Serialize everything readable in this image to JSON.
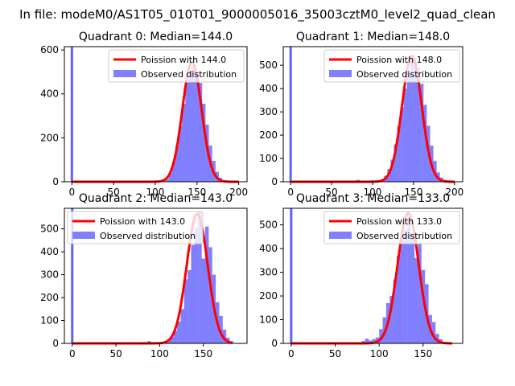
{
  "suptitle": "In file: modeM0/AS1T05_010T01_9000005016_35003cztM0_level2_quad_clean",
  "colors": {
    "hist": "#8080ff",
    "hist_spike": "#5f5fff",
    "fit": "#ff0000",
    "axis": "#000000"
  },
  "chart_data": [
    {
      "type": "bar",
      "title": "Quadrant 0: Median=144.0",
      "xlim": [
        -9,
        210
      ],
      "ylim": [
        0,
        615
      ],
      "xticks": [
        0,
        50,
        100,
        150,
        200
      ],
      "yticks": [
        0,
        200,
        400,
        600
      ],
      "legend": {
        "position": "top-right",
        "fit_label": "Poission with 144.0",
        "hist_label": "Observed distribution"
      },
      "median": 144,
      "amplitude": 545,
      "sigma": 11.5,
      "spike": {
        "x": 0,
        "value": 615
      },
      "hist": [
        [
          108,
          2
        ],
        [
          112,
          12
        ],
        [
          116,
          40
        ],
        [
          120,
          90
        ],
        [
          124,
          160
        ],
        [
          128,
          255
        ],
        [
          132,
          355
        ],
        [
          136,
          450
        ],
        [
          140,
          505
        ],
        [
          144,
          530
        ],
        [
          148,
          500
        ],
        [
          152,
          450
        ],
        [
          156,
          355
        ],
        [
          160,
          260
        ],
        [
          164,
          165
        ],
        [
          168,
          95
        ],
        [
          172,
          45
        ],
        [
          176,
          18
        ],
        [
          180,
          6
        ]
      ],
      "fit_range": [
        0,
        200
      ]
    },
    {
      "type": "bar",
      "title": "Quadrant 1: Median=148.0",
      "xlim": [
        -9,
        210
      ],
      "ylim": [
        0,
        580
      ],
      "xticks": [
        0,
        50,
        100,
        150,
        200
      ],
      "yticks": [
        0,
        100,
        200,
        300,
        400,
        500
      ],
      "legend": {
        "position": "top-right",
        "fit_label": "Poission with 148.0",
        "hist_label": "Observed distribution"
      },
      "median": 148,
      "amplitude": 540,
      "sigma": 12,
      "spike": {
        "x": 0,
        "value": 580
      },
      "hist": [
        [
          80,
          8
        ],
        [
          86,
          4
        ],
        [
          92,
          3
        ],
        [
          98,
          6
        ],
        [
          104,
          4
        ],
        [
          110,
          10
        ],
        [
          114,
          25
        ],
        [
          118,
          55
        ],
        [
          122,
          95
        ],
        [
          126,
          160
        ],
        [
          130,
          240
        ],
        [
          134,
          320
        ],
        [
          138,
          400
        ],
        [
          142,
          470
        ],
        [
          146,
          520
        ],
        [
          150,
          530
        ],
        [
          154,
          490
        ],
        [
          158,
          420
        ],
        [
          162,
          330
        ],
        [
          166,
          240
        ],
        [
          170,
          155
        ],
        [
          174,
          90
        ],
        [
          178,
          40
        ],
        [
          182,
          18
        ],
        [
          186,
          8
        ]
      ],
      "fit_range": [
        0,
        200
      ]
    },
    {
      "type": "bar",
      "title": "Quadrant 2: Median=143.0",
      "xlim": [
        -9,
        200
      ],
      "ylim": [
        0,
        590
      ],
      "xticks": [
        0,
        50,
        100,
        150
      ],
      "yticks": [
        0,
        100,
        200,
        300,
        400,
        500
      ],
      "legend": {
        "position": "top-left",
        "fit_label": "Poission with 143.0",
        "hist_label": "Observed distribution"
      },
      "median": 143,
      "amplitude": 565,
      "sigma": 12,
      "spike": {
        "x": 0,
        "value": 590
      },
      "hist": [
        [
          80,
          6
        ],
        [
          86,
          10
        ],
        [
          92,
          5
        ],
        [
          98,
          4
        ],
        [
          104,
          6
        ],
        [
          108,
          12
        ],
        [
          112,
          28
        ],
        [
          116,
          55
        ],
        [
          120,
          95
        ],
        [
          124,
          150
        ],
        [
          128,
          280
        ],
        [
          132,
          320
        ],
        [
          136,
          430
        ],
        [
          140,
          505
        ],
        [
          144,
          575
        ],
        [
          148,
          370
        ],
        [
          152,
          510
        ],
        [
          156,
          420
        ],
        [
          160,
          300
        ],
        [
          164,
          180
        ],
        [
          168,
          120
        ],
        [
          172,
          60
        ],
        [
          176,
          25
        ],
        [
          180,
          10
        ]
      ],
      "fit_range": [
        0,
        183
      ]
    },
    {
      "type": "bar",
      "title": "Quadrant 3: Median=133.0",
      "xlim": [
        -9,
        195
      ],
      "ylim": [
        0,
        570
      ],
      "xticks": [
        0,
        50,
        100,
        150
      ],
      "yticks": [
        0,
        100,
        200,
        300,
        400,
        500
      ],
      "legend": {
        "position": "top-right",
        "fit_label": "Poission with 133.0",
        "hist_label": "Observed distribution"
      },
      "median": 133,
      "amplitude": 550,
      "sigma": 12,
      "spike": {
        "x": 0,
        "value": 570
      },
      "hist": [
        [
          76,
          4
        ],
        [
          80,
          10
        ],
        [
          84,
          20
        ],
        [
          88,
          12
        ],
        [
          92,
          18
        ],
        [
          96,
          25
        ],
        [
          100,
          60
        ],
        [
          104,
          110
        ],
        [
          108,
          170
        ],
        [
          112,
          200
        ],
        [
          116,
          270
        ],
        [
          120,
          370
        ],
        [
          124,
          440
        ],
        [
          128,
          480
        ],
        [
          132,
          545
        ],
        [
          136,
          460
        ],
        [
          140,
          360
        ],
        [
          144,
          420
        ],
        [
          148,
          310
        ],
        [
          152,
          250
        ],
        [
          156,
          120
        ],
        [
          160,
          90
        ],
        [
          164,
          40
        ],
        [
          168,
          18
        ],
        [
          172,
          6
        ]
      ],
      "fit_range": [
        0,
        183
      ]
    }
  ]
}
